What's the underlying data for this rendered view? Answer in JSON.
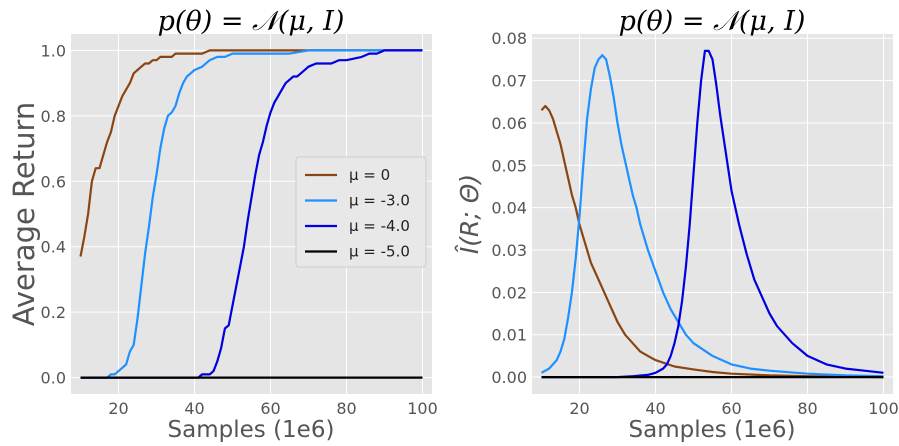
{
  "chart_data": [
    {
      "type": "line",
      "title": "p(θ) = 𝒩(μ, I)",
      "xlabel": "Samples (1e6)",
      "ylabel": "Average Return",
      "xlim": [
        7.5,
        102.5
      ],
      "ylim": [
        -0.05,
        1.05
      ],
      "xticks": [
        20,
        40,
        60,
        80,
        100
      ],
      "yticks": [
        0.0,
        0.2,
        0.4,
        0.6,
        0.8,
        1.0
      ],
      "ytick_labels": [
        "0.0",
        "0.2",
        "0.4",
        "0.6",
        "0.8",
        "1.0"
      ],
      "grid": true,
      "legend": {
        "placement": "center-right"
      },
      "series": [
        {
          "name": "μ = 0",
          "color": "#8b4513",
          "x": [
            10,
            11,
            12,
            13,
            14,
            15,
            16,
            17,
            18,
            19,
            20,
            21,
            22,
            23,
            24,
            25,
            26,
            27,
            28,
            29,
            30,
            31,
            32,
            33,
            34,
            35,
            36,
            38,
            40,
            42,
            44,
            46,
            48,
            50,
            55,
            60,
            70,
            80,
            90,
            100
          ],
          "y": [
            0.37,
            0.43,
            0.5,
            0.6,
            0.64,
            0.64,
            0.68,
            0.72,
            0.75,
            0.8,
            0.83,
            0.86,
            0.88,
            0.9,
            0.93,
            0.94,
            0.95,
            0.96,
            0.96,
            0.97,
            0.97,
            0.98,
            0.98,
            0.98,
            0.98,
            0.99,
            0.99,
            0.99,
            0.99,
            0.99,
            1.0,
            1.0,
            1.0,
            1.0,
            1.0,
            1.0,
            1.0,
            1.0,
            1.0,
            1.0
          ]
        },
        {
          "name": "μ = -3.0",
          "color": "#1e90ff",
          "x": [
            10,
            15,
            17,
            18,
            19,
            20,
            21,
            22,
            23,
            24,
            25,
            26,
            27,
            28,
            29,
            30,
            31,
            32,
            33,
            34,
            35,
            36,
            37,
            38,
            39,
            40,
            42,
            44,
            46,
            48,
            50,
            55,
            60,
            65,
            70,
            80,
            90,
            100
          ],
          "y": [
            0.0,
            0.0,
            0.0,
            0.01,
            0.01,
            0.02,
            0.03,
            0.04,
            0.08,
            0.1,
            0.18,
            0.28,
            0.38,
            0.46,
            0.55,
            0.62,
            0.7,
            0.76,
            0.8,
            0.81,
            0.83,
            0.87,
            0.9,
            0.92,
            0.93,
            0.94,
            0.95,
            0.97,
            0.98,
            0.98,
            0.99,
            0.99,
            0.99,
            0.99,
            1.0,
            1.0,
            1.0,
            1.0
          ]
        },
        {
          "name": "μ = -4.0",
          "color": "#0000e0",
          "x": [
            10,
            20,
            30,
            40,
            41,
            42,
            43,
            44,
            45,
            46,
            47,
            48,
            49,
            50,
            51,
            52,
            53,
            54,
            55,
            56,
            57,
            58,
            59,
            60,
            61,
            62,
            63,
            64,
            65,
            66,
            67,
            68,
            70,
            72,
            74,
            76,
            78,
            80,
            84,
            86,
            88,
            90,
            95,
            100
          ],
          "y": [
            0.0,
            0.0,
            0.0,
            0.0,
            0.0,
            0.01,
            0.01,
            0.01,
            0.02,
            0.05,
            0.09,
            0.15,
            0.16,
            0.22,
            0.28,
            0.34,
            0.4,
            0.48,
            0.55,
            0.62,
            0.68,
            0.72,
            0.77,
            0.81,
            0.84,
            0.86,
            0.88,
            0.9,
            0.91,
            0.92,
            0.92,
            0.93,
            0.95,
            0.96,
            0.96,
            0.96,
            0.97,
            0.97,
            0.98,
            0.99,
            0.99,
            1.0,
            1.0,
            1.0
          ]
        },
        {
          "name": "μ = -5.0",
          "color": "#000000",
          "x": [
            10,
            100
          ],
          "y": [
            0.0,
            0.0
          ]
        }
      ]
    },
    {
      "type": "line",
      "title": "p(θ) = 𝒩(μ, I)",
      "xlabel": "Samples (1e6)",
      "ylabel": "Î(R; Θ)",
      "xlim": [
        7.5,
        102.5
      ],
      "ylim": [
        -0.004,
        0.081
      ],
      "xticks": [
        20,
        40,
        60,
        80,
        100
      ],
      "yticks": [
        0.0,
        0.01,
        0.02,
        0.03,
        0.04,
        0.05,
        0.06,
        0.07,
        0.08
      ],
      "ytick_labels": [
        "0.00",
        "0.01",
        "0.02",
        "0.03",
        "0.04",
        "0.05",
        "0.06",
        "0.07",
        "0.08"
      ],
      "grid": true,
      "series": [
        {
          "name": "μ = 0",
          "color": "#8b4513",
          "x": [
            10,
            11,
            12,
            13,
            14,
            15,
            16,
            17,
            18,
            19,
            20,
            21,
            22,
            23,
            24,
            25,
            26,
            27,
            28,
            29,
            30,
            32,
            34,
            36,
            38,
            40,
            45,
            50,
            55,
            60,
            70,
            80,
            90,
            100
          ],
          "y": [
            0.063,
            0.064,
            0.063,
            0.061,
            0.058,
            0.055,
            0.051,
            0.047,
            0.043,
            0.04,
            0.036,
            0.033,
            0.03,
            0.027,
            0.025,
            0.023,
            0.021,
            0.019,
            0.017,
            0.015,
            0.013,
            0.01,
            0.008,
            0.006,
            0.005,
            0.004,
            0.0025,
            0.0018,
            0.0012,
            0.0008,
            0.0004,
            0.0002,
            0.0001,
            0.0
          ]
        },
        {
          "name": "μ = -3.0",
          "color": "#1e90ff",
          "x": [
            10,
            12,
            14,
            15,
            16,
            17,
            18,
            19,
            20,
            21,
            22,
            23,
            24,
            25,
            26,
            27,
            28,
            29,
            30,
            31,
            32,
            33,
            34,
            35,
            36,
            38,
            40,
            42,
            44,
            46,
            48,
            50,
            55,
            60,
            65,
            70,
            80,
            90,
            100
          ],
          "y": [
            0.001,
            0.002,
            0.004,
            0.006,
            0.009,
            0.014,
            0.02,
            0.028,
            0.038,
            0.05,
            0.061,
            0.068,
            0.073,
            0.075,
            0.076,
            0.075,
            0.071,
            0.066,
            0.06,
            0.055,
            0.051,
            0.047,
            0.043,
            0.04,
            0.036,
            0.03,
            0.025,
            0.02,
            0.016,
            0.013,
            0.01,
            0.008,
            0.005,
            0.003,
            0.002,
            0.0015,
            0.0008,
            0.0004,
            0.0002
          ]
        },
        {
          "name": "μ = -4.0",
          "color": "#0000e0",
          "x": [
            10,
            30,
            34,
            38,
            40,
            42,
            43,
            44,
            45,
            46,
            47,
            48,
            49,
            50,
            51,
            52,
            53,
            54,
            55,
            56,
            57,
            58,
            59,
            60,
            62,
            64,
            66,
            68,
            70,
            72,
            74,
            76,
            78,
            80,
            85,
            90,
            95,
            100
          ],
          "y": [
            0.0,
            0.0,
            0.0002,
            0.0005,
            0.001,
            0.002,
            0.003,
            0.005,
            0.008,
            0.012,
            0.018,
            0.026,
            0.036,
            0.048,
            0.06,
            0.07,
            0.077,
            0.077,
            0.075,
            0.069,
            0.062,
            0.056,
            0.05,
            0.044,
            0.036,
            0.029,
            0.023,
            0.019,
            0.015,
            0.012,
            0.01,
            0.008,
            0.0065,
            0.005,
            0.003,
            0.002,
            0.0015,
            0.001
          ]
        },
        {
          "name": "μ = -5.0",
          "color": "#000000",
          "x": [
            10,
            100
          ],
          "y": [
            0.0,
            0.0
          ]
        }
      ]
    }
  ]
}
